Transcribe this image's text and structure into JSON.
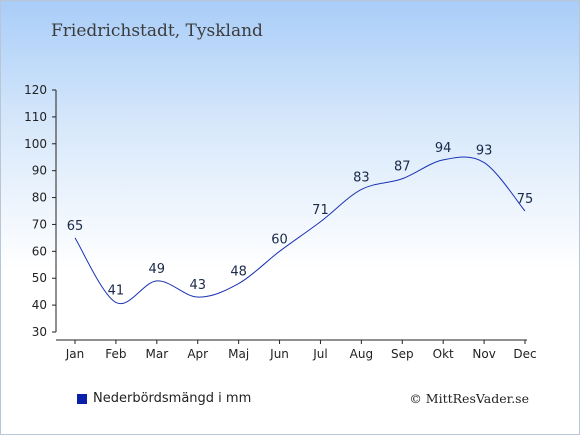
{
  "title": "Friedrichstadt, Tyskland",
  "legend_label": "Nederbördsmängd i mm",
  "copyright": "© MittResVader.se",
  "chart_data": {
    "type": "line",
    "categories": [
      "Jan",
      "Feb",
      "Mar",
      "Apr",
      "Maj",
      "Jun",
      "Jul",
      "Aug",
      "Sep",
      "Okt",
      "Nov",
      "Dec"
    ],
    "series": [
      {
        "name": "Nederbördsmängd i mm",
        "values": [
          65,
          41,
          49,
          43,
          48,
          60,
          71,
          83,
          87,
          94,
          93,
          75
        ],
        "color": "#1a33b3"
      }
    ],
    "ylim": [
      30,
      120
    ],
    "yticks": [
      30,
      40,
      50,
      60,
      70,
      80,
      90,
      100,
      110,
      120
    ],
    "grid": false,
    "legend_position": "bottom-left"
  }
}
